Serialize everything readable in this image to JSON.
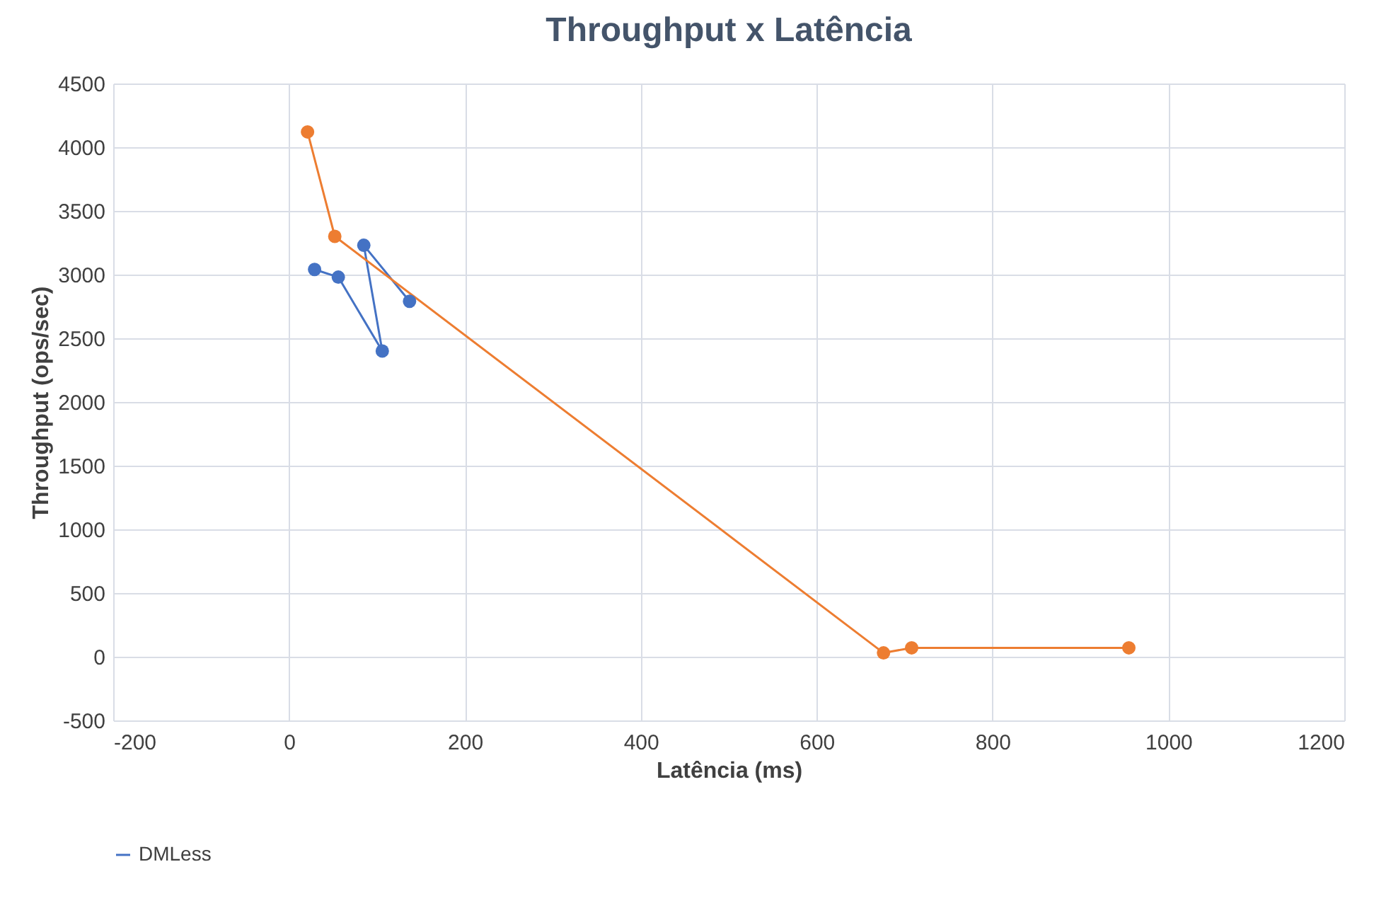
{
  "chart_data": {
    "type": "line",
    "title": "Throughput x Latência",
    "xlabel": "Latência (ms)",
    "ylabel": "Throughput (ops/sec)",
    "series": [
      {
        "name": "DMLess",
        "color": "#4472c4",
        "x": [
          29,
          56,
          106,
          85,
          137
        ],
        "values": [
          3040,
          2980,
          2400,
          3230,
          2790
        ]
      },
      {
        "color": "#ed7d31",
        "x": [
          21,
          52,
          676,
          708,
          955
        ],
        "values": [
          4120,
          3300,
          30,
          70,
          70
        ]
      }
    ],
    "xlim": [
      -200,
      1200
    ],
    "xticks": [
      -200,
      0,
      200,
      400,
      600,
      800,
      1000,
      1200
    ],
    "ylim": [
      -500,
      4500
    ],
    "yticks": [
      -500,
      0,
      500,
      1000,
      1500,
      2000,
      2500,
      3000,
      3500,
      4000,
      4500
    ],
    "grid": true,
    "legend": "bottom",
    "marker": "circle",
    "line_style": "solid"
  }
}
